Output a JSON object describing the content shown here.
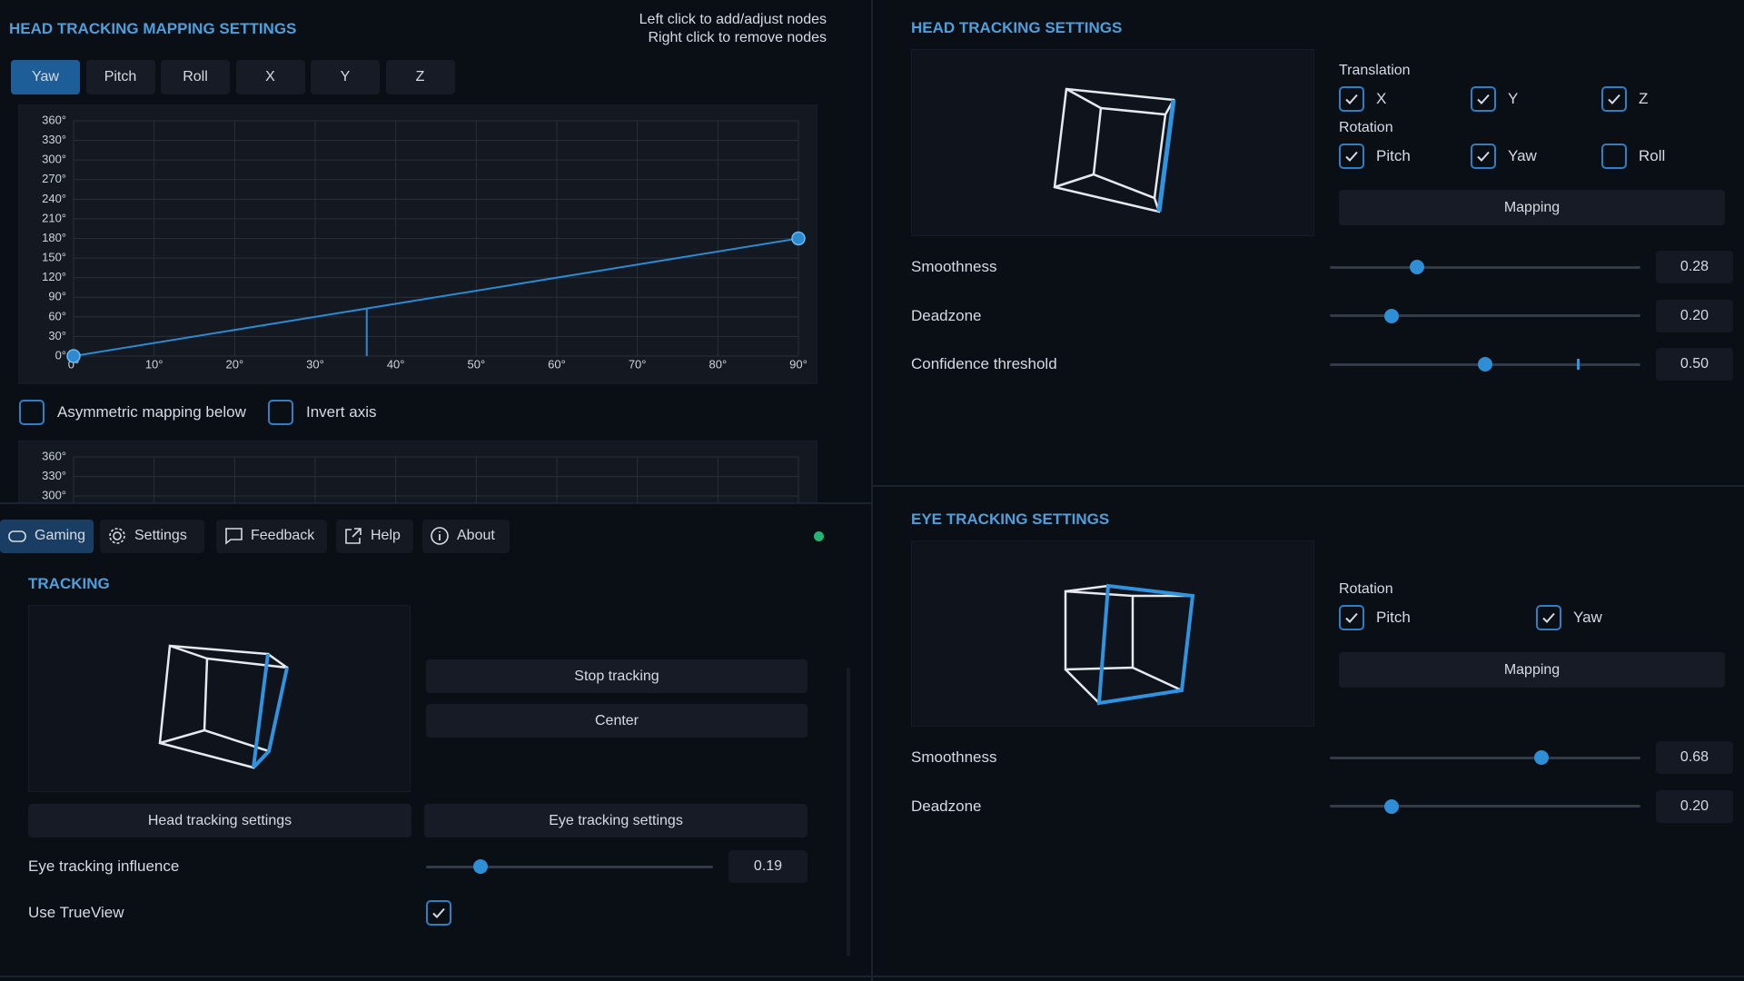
{
  "mapping": {
    "title": "HEAD TRACKING MAPPING SETTINGS",
    "hints": [
      "Left click to add/adjust nodes",
      "Right click to remove nodes"
    ],
    "tabs": [
      "Yaw",
      "Pitch",
      "Roll",
      "X",
      "Y",
      "Z"
    ],
    "active_tab": 0,
    "chart": {
      "type": "line",
      "x": [
        0,
        90
      ],
      "values": [
        0,
        180
      ],
      "color": "#2b8ad0",
      "cursor": 36.4,
      "xlim": [
        0,
        90
      ],
      "ylim": [
        0,
        360
      ],
      "grid": true,
      "xticks": [
        {
          "value": 0,
          "label": "0°"
        },
        {
          "value": 10,
          "label": "10°"
        },
        {
          "value": 20,
          "label": "20°"
        },
        {
          "value": 30,
          "label": "30°"
        },
        {
          "value": 40,
          "label": "40°"
        },
        {
          "value": 50,
          "label": "50°"
        },
        {
          "value": 60,
          "label": "60°"
        },
        {
          "value": 70,
          "label": "70°"
        },
        {
          "value": 80,
          "label": "80°"
        },
        {
          "value": 90,
          "label": "90°"
        }
      ],
      "yticks": [
        {
          "value": 0,
          "label": "0°"
        },
        {
          "value": 30,
          "label": "30°"
        },
        {
          "value": 60,
          "label": "60°"
        },
        {
          "value": 90,
          "label": "90°"
        },
        {
          "value": 120,
          "label": "120°"
        },
        {
          "value": 150,
          "label": "150°"
        },
        {
          "value": 180,
          "label": "180°"
        },
        {
          "value": 210,
          "label": "210°"
        },
        {
          "value": 240,
          "label": "240°"
        },
        {
          "value": 270,
          "label": "270°"
        },
        {
          "value": 300,
          "label": "300°"
        },
        {
          "value": 330,
          "label": "330°"
        },
        {
          "value": 360,
          "label": "360°"
        }
      ]
    },
    "options": [
      {
        "label": "Asymmetric mapping below",
        "checked": false
      },
      {
        "label": "Invert axis",
        "checked": false
      }
    ]
  },
  "nav": {
    "tabs": [
      "Gaming",
      "Settings",
      "Feedback",
      "Help",
      "About"
    ],
    "active_tab": 0
  },
  "tracking": {
    "title": "TRACKING",
    "buttons": [
      "Stop tracking",
      "Center",
      "Head tracking settings",
      "Eye tracking settings"
    ],
    "influence": {
      "label": "Eye tracking influence",
      "value": 0.19,
      "range": [
        0,
        1
      ]
    },
    "trueview": {
      "label": "Use TrueView",
      "checked": true
    }
  },
  "head_tracking": {
    "title": "HEAD TRACKING SETTINGS",
    "translation": {
      "label": "Translation",
      "axes": [
        {
          "label": "X",
          "checked": true
        },
        {
          "label": "Y",
          "checked": true
        },
        {
          "label": "Z",
          "checked": true
        }
      ]
    },
    "rotation": {
      "label": "Rotation",
      "axes": [
        {
          "label": "Pitch",
          "checked": true
        },
        {
          "label": "Yaw",
          "checked": true
        },
        {
          "label": "Roll",
          "checked": false
        }
      ]
    },
    "mapping_button": "Mapping",
    "range": [
      0,
      1
    ],
    "sliders": [
      {
        "label": "Smoothness",
        "value": 0.28
      },
      {
        "label": "Deadzone",
        "value": 0.2,
        "value_label": "0.20"
      },
      {
        "label": "Confidence threshold",
        "value": 0.5,
        "value_label": "0.50",
        "marker": 0.8
      }
    ]
  },
  "eye_tracking": {
    "title": "EYE TRACKING SETTINGS",
    "rotation": {
      "label": "Rotation",
      "axes": [
        {
          "label": "Pitch",
          "checked": true
        },
        {
          "label": "Yaw",
          "checked": true
        }
      ]
    },
    "mapping_button": "Mapping",
    "range": [
      0,
      1
    ],
    "sliders": [
      {
        "label": "Smoothness",
        "value": 0.68
      },
      {
        "label": "Deadzone",
        "value": 0.2,
        "value_label": "0.20"
      }
    ]
  }
}
